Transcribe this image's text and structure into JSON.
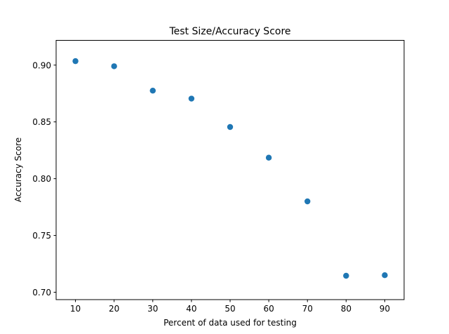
{
  "chart_data": {
    "type": "scatter",
    "title": "Test Size/Accuracy Score",
    "xlabel": "Percent of data used for testing",
    "ylabel": "Accuracy Score",
    "x_ticks": [
      "10",
      "20",
      "30",
      "40",
      "50",
      "60",
      "70",
      "80",
      "90"
    ],
    "y_ticks": [
      "0.70",
      "0.75",
      "0.80",
      "0.85",
      "0.90"
    ],
    "xlim": [
      5,
      95
    ],
    "ylim": [
      0.6935,
      0.9218
    ],
    "grid": false,
    "series": [
      {
        "color": "#1f77b4",
        "points": [
          {
            "x": 10,
            "y": 0.9035
          },
          {
            "x": 20,
            "y": 0.899
          },
          {
            "x": 30,
            "y": 0.8775
          },
          {
            "x": 40,
            "y": 0.8705
          },
          {
            "x": 50,
            "y": 0.8455
          },
          {
            "x": 60,
            "y": 0.8185
          },
          {
            "x": 70,
            "y": 0.78
          },
          {
            "x": 80,
            "y": 0.7145
          },
          {
            "x": 90,
            "y": 0.715
          }
        ]
      }
    ]
  }
}
